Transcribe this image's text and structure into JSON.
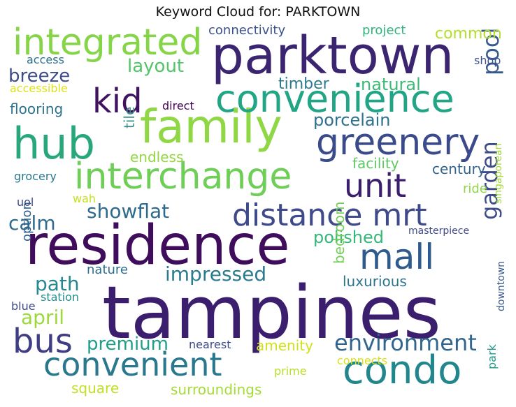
{
  "title": "Keyword Cloud for: PARKTOWN",
  "words": [
    {
      "text": "tampines",
      "color": "#3b1f6e"
    },
    {
      "text": "residence",
      "color": "#3f0d5c"
    },
    {
      "text": "parktown",
      "color": "#3b2571"
    },
    {
      "text": "family",
      "color": "#8fd744"
    },
    {
      "text": "hub",
      "color": "#28a87a"
    },
    {
      "text": "convenience",
      "color": "#21a585"
    },
    {
      "text": "integrated",
      "color": "#86d549"
    },
    {
      "text": "interchange",
      "color": "#6ece58"
    },
    {
      "text": "greenery",
      "color": "#3a4a8b"
    },
    {
      "text": "condo",
      "color": "#22868d"
    },
    {
      "text": "convenient",
      "color": "#2a788e"
    },
    {
      "text": "distance mrt",
      "color": "#3e4a89"
    },
    {
      "text": "unit",
      "color": "#3b1f6e"
    },
    {
      "text": "mall",
      "color": "#2e5a8d"
    },
    {
      "text": "bus",
      "color": "#3f3e84"
    },
    {
      "text": "kid",
      "color": "#40125f"
    },
    {
      "text": "environment",
      "color": "#32658e"
    },
    {
      "text": "showflat",
      "color": "#2e6a8e"
    },
    {
      "text": "garden",
      "color": "#3e4c8a"
    },
    {
      "text": "pool",
      "color": "#37598c"
    },
    {
      "text": "impressed",
      "color": "#2a7b8e"
    },
    {
      "text": "premium",
      "color": "#1f9e89"
    },
    {
      "text": "path",
      "color": "#23898e"
    },
    {
      "text": "april",
      "color": "#9dd93b"
    },
    {
      "text": "breeze",
      "color": "#3d4d8a"
    },
    {
      "text": "calm",
      "color": "#2e6b8e"
    },
    {
      "text": "layout",
      "color": "#52c569"
    },
    {
      "text": "polished",
      "color": "#35b779"
    },
    {
      "text": "porcelain",
      "color": "#2c718e"
    },
    {
      "text": "natural",
      "color": "#3bbb75"
    },
    {
      "text": "timber",
      "color": "#2b7b8e"
    },
    {
      "text": "common",
      "color": "#b5de2b"
    },
    {
      "text": "flooring",
      "color": "#2c738e"
    },
    {
      "text": "luxurious",
      "color": "#2c738e"
    },
    {
      "text": "bedroom",
      "color": "#73d056"
    },
    {
      "text": "facility",
      "color": "#5ec962"
    },
    {
      "text": "century",
      "color": "#32648e"
    },
    {
      "text": "endless",
      "color": "#93d741"
    },
    {
      "text": "amenity",
      "color": "#d0e11c"
    },
    {
      "text": "surroundings",
      "color": "#a5db36"
    },
    {
      "text": "square",
      "color": "#c2df23"
    },
    {
      "text": "tile",
      "color": "#3b8f8b"
    },
    {
      "text": "nature",
      "color": "#2f6c8e"
    },
    {
      "text": "connectivity",
      "color": "#3b518b"
    },
    {
      "text": "project",
      "color": "#2fb47c"
    },
    {
      "text": "ride",
      "color": "#8ed645"
    },
    {
      "text": "option",
      "color": "#33638d"
    },
    {
      "text": "station",
      "color": "#228d8d"
    },
    {
      "text": "direct",
      "color": "#440154"
    },
    {
      "text": "grocery",
      "color": "#2a788e"
    },
    {
      "text": "access",
      "color": "#2c718e"
    },
    {
      "text": "accessible",
      "color": "#dde318"
    },
    {
      "text": "shop",
      "color": "#3a548c"
    },
    {
      "text": "uol",
      "color": "#3e4a89"
    },
    {
      "text": "wah",
      "color": "#c8e020"
    },
    {
      "text": "blue",
      "color": "#3e4989"
    },
    {
      "text": "nearest",
      "color": "#3e4a89"
    },
    {
      "text": "connects",
      "color": "#d8e219"
    },
    {
      "text": "prime",
      "color": "#b8de29"
    },
    {
      "text": "masterpiece",
      "color": "#3e4a89"
    },
    {
      "text": "singaporean",
      "color": "#a2da37"
    },
    {
      "text": "downtown",
      "color": "#38588c"
    },
    {
      "text": "park",
      "color": "#1f9a8a"
    }
  ]
}
